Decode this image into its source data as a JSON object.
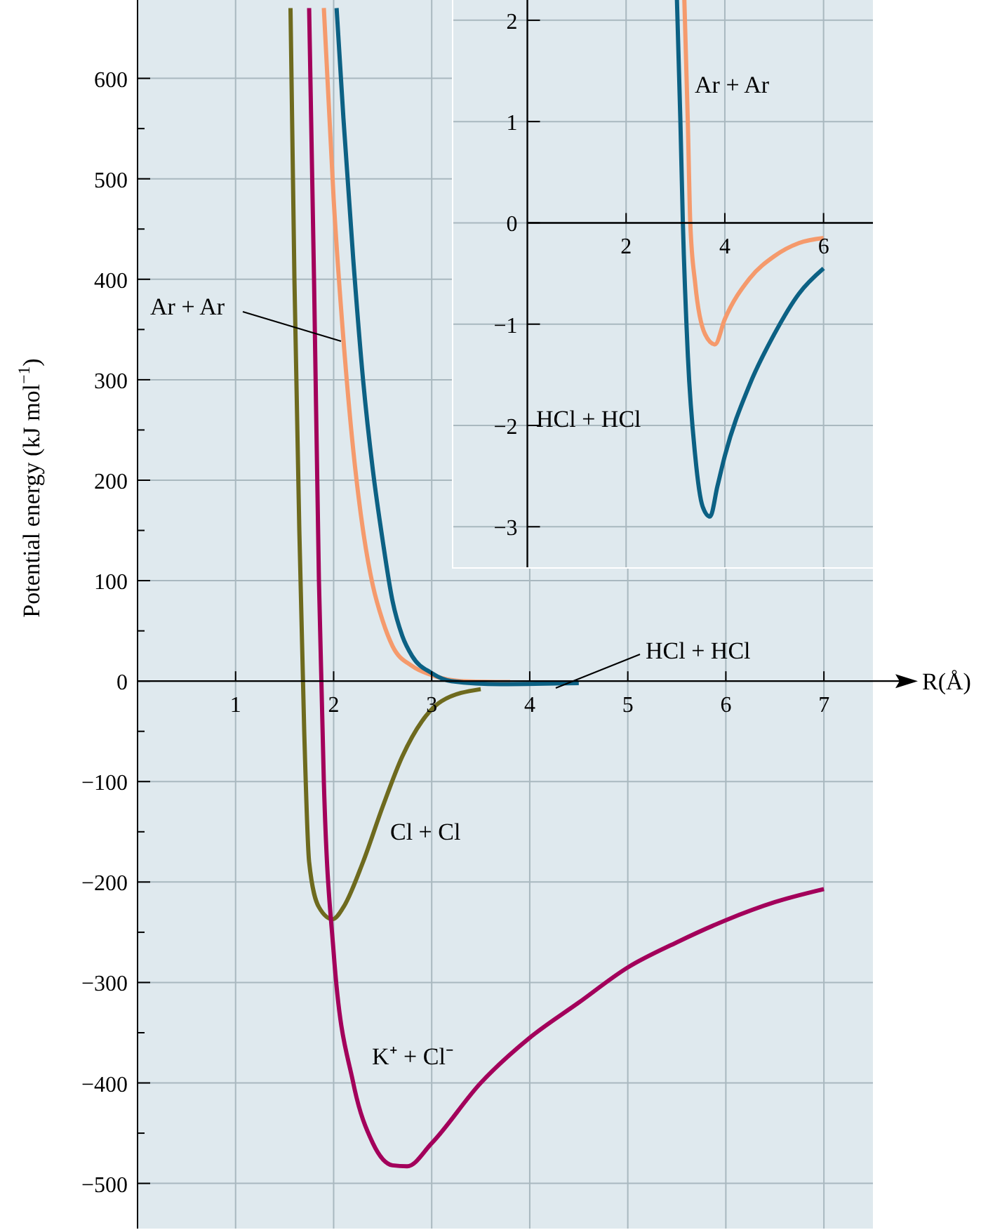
{
  "chart_data": [
    {
      "type": "line",
      "xlabel": "R(Å)",
      "ylabel": "Potential energy (kJ mol$^{−1}$)",
      "xlim": [
        0,
        7.5
      ],
      "ylim": [
        -545,
        678
      ],
      "xticks": [
        1,
        2,
        3,
        4,
        5,
        6,
        7
      ],
      "yticks": [
        {
          "value": -500,
          "label": "−500"
        },
        {
          "value": -450,
          "label": null
        },
        {
          "value": -400,
          "label": "−400"
        },
        {
          "value": -350,
          "label": null
        },
        {
          "value": -300,
          "label": "−300"
        },
        {
          "value": -250,
          "label": null
        },
        {
          "value": -200,
          "label": "−200"
        },
        {
          "value": -150,
          "label": null
        },
        {
          "value": -100,
          "label": "−100"
        },
        {
          "value": -50,
          "label": null
        },
        {
          "value": 0,
          "label": "0"
        },
        {
          "value": 50,
          "label": null
        },
        {
          "value": 100,
          "label": "100"
        },
        {
          "value": 150,
          "label": null
        },
        {
          "value": 200,
          "label": "200"
        },
        {
          "value": 250,
          "label": null
        },
        {
          "value": 300,
          "label": "300"
        },
        {
          "value": 350,
          "label": null
        },
        {
          "value": 400,
          "label": "400"
        },
        {
          "value": 450,
          "label": null
        },
        {
          "value": 500,
          "label": "500"
        },
        {
          "value": 550,
          "label": null
        },
        {
          "value": 600,
          "label": "600"
        }
      ],
      "grid": true,
      "marker": "none",
      "line_style": "solid",
      "series": [
        {
          "name": "Cl + Cl",
          "color": "#6e6a1e",
          "x": [
            1.56,
            1.6,
            1.65,
            1.7,
            1.75,
            1.85,
            1.99,
            2.1,
            2.3,
            2.5,
            2.7,
            2.9,
            3.1,
            3.5
          ],
          "values": [
            670,
            400,
            150,
            -50,
            -180,
            -225,
            -237,
            -225,
            -180,
            -125,
            -75,
            -40,
            -20,
            -8
          ]
        },
        {
          "name": "K⁺ + Cl⁻",
          "color": "#a3005b",
          "x": [
            1.75,
            1.8,
            1.85,
            1.9,
            2.0,
            2.2,
            2.4,
            2.6,
            2.75,
            3.0,
            3.5,
            4.0,
            4.5,
            5.0,
            5.5,
            6.0,
            6.5,
            7.0
          ],
          "values": [
            670,
            400,
            100,
            -100,
            -270,
            -400,
            -460,
            -482,
            -483,
            -460,
            -400,
            -355,
            -320,
            -285,
            -260,
            -238,
            -220,
            -207
          ]
        },
        {
          "name": "Ar + Ar",
          "color": "#f59a6c",
          "x": [
            1.9,
            2.0,
            2.1,
            2.2,
            2.3,
            2.4,
            2.5,
            2.6,
            2.8,
            3.0,
            3.3,
            3.8
          ],
          "values": [
            670,
            480,
            340,
            230,
            150,
            95,
            60,
            35,
            15,
            6,
            0,
            -1
          ]
        },
        {
          "name": "HCl + HCl",
          "color": "#0c6184",
          "x": [
            2.03,
            2.1,
            2.2,
            2.3,
            2.4,
            2.5,
            2.6,
            2.7,
            2.8,
            3.0,
            3.2,
            3.7,
            4.5
          ],
          "values": [
            670,
            560,
            420,
            300,
            210,
            140,
            80,
            45,
            25,
            8,
            0,
            -3,
            -2
          ]
        }
      ]
    },
    {
      "type": "line",
      "xlim": [
        -1.5,
        7
      ],
      "ylim": [
        -3.4,
        2.2
      ],
      "xticks": [
        2,
        4,
        6
      ],
      "yticks": [
        {
          "value": -3,
          "label": "−3"
        },
        {
          "value": -2,
          "label": "−2"
        },
        {
          "value": -1,
          "label": "−1"
        },
        {
          "value": 0,
          "label": "0"
        },
        {
          "value": 1,
          "label": "1"
        },
        {
          "value": 2,
          "label": "2"
        }
      ],
      "grid": true,
      "marker": "none",
      "line_style": "solid",
      "series": [
        {
          "name": "Ar + Ar",
          "color": "#f59a6c",
          "x": [
            3.18,
            3.25,
            3.3,
            3.4,
            3.6,
            3.8,
            4.0,
            4.5,
            5.0,
            5.5,
            6.0
          ],
          "values": [
            2.2,
            1,
            0,
            -0.6,
            -1.1,
            -1.2,
            -0.95,
            -0.55,
            -0.33,
            -0.2,
            -0.15
          ]
        },
        {
          "name": "HCl + HCl",
          "color": "#0c6184",
          "x": [
            3.03,
            3.1,
            3.15,
            3.25,
            3.4,
            3.55,
            3.7,
            3.85,
            4.0,
            4.5,
            5.0,
            5.5,
            6.0
          ],
          "values": [
            2.2,
            1,
            0,
            -1.3,
            -2.3,
            -2.8,
            -2.9,
            -2.6,
            -2.3,
            -1.6,
            -1.1,
            -0.7,
            -0.45
          ]
        }
      ]
    }
  ]
}
